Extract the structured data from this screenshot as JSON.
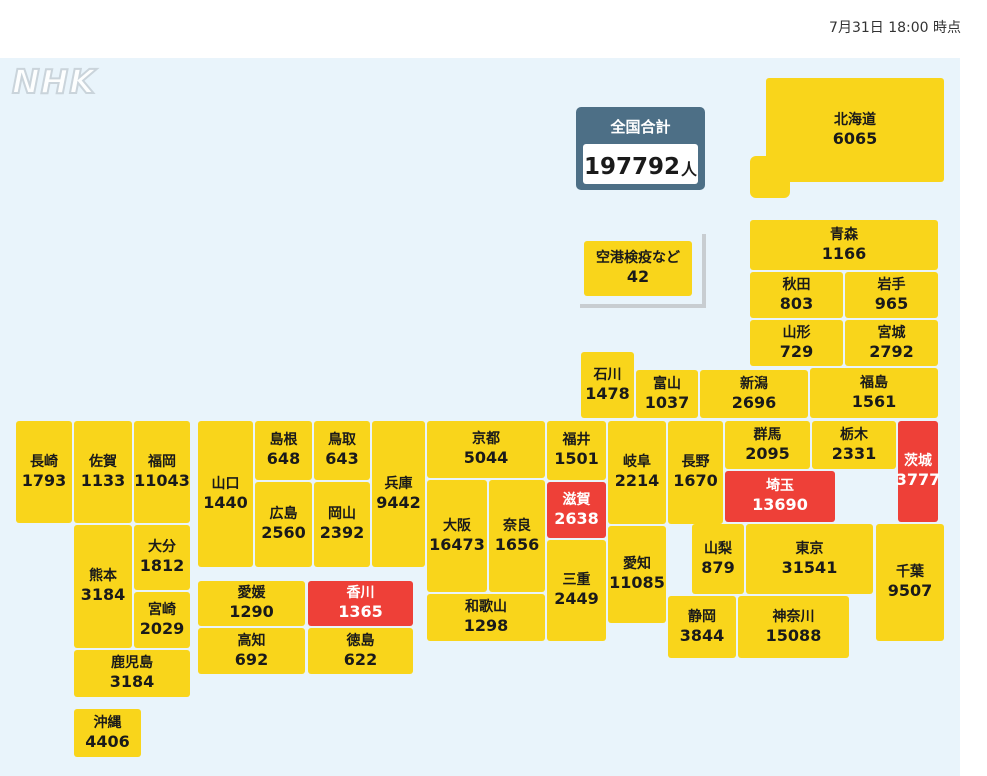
{
  "header": {
    "timestamp": "7月31日 18:00 時点"
  },
  "logo": {
    "text": "NHK"
  },
  "total": {
    "label": "全国合計",
    "value": "197792",
    "unit": "人"
  },
  "colors": {
    "normal": "#f9d51b",
    "highlight": "#ee4038",
    "background": "#e9f4fb",
    "total_box": "#4d6f86"
  },
  "prefectures": [
    {
      "id": "hokkaido",
      "name": "北海道",
      "value": "6065",
      "highlight": false
    },
    {
      "id": "airport",
      "name": "空港検疫など",
      "value": "42",
      "highlight": false
    },
    {
      "id": "aomori",
      "name": "青森",
      "value": "1166",
      "highlight": false
    },
    {
      "id": "akita",
      "name": "秋田",
      "value": "803",
      "highlight": false
    },
    {
      "id": "iwate",
      "name": "岩手",
      "value": "965",
      "highlight": false
    },
    {
      "id": "yamagata",
      "name": "山形",
      "value": "729",
      "highlight": false
    },
    {
      "id": "miyagi",
      "name": "宮城",
      "value": "2792",
      "highlight": false
    },
    {
      "id": "ishikawa",
      "name": "石川",
      "value": "1478",
      "highlight": false
    },
    {
      "id": "toyama",
      "name": "富山",
      "value": "1037",
      "highlight": false
    },
    {
      "id": "niigata",
      "name": "新潟",
      "value": "2696",
      "highlight": false
    },
    {
      "id": "fukushima",
      "name": "福島",
      "value": "1561",
      "highlight": false
    },
    {
      "id": "nagasaki",
      "name": "長崎",
      "value": "1793",
      "highlight": false
    },
    {
      "id": "saga",
      "name": "佐賀",
      "value": "1133",
      "highlight": false
    },
    {
      "id": "fukuoka",
      "name": "福岡",
      "value": "11043",
      "highlight": false
    },
    {
      "id": "yamaguchi",
      "name": "山口",
      "value": "1440",
      "highlight": false
    },
    {
      "id": "shimane",
      "name": "島根",
      "value": "648",
      "highlight": false
    },
    {
      "id": "tottori",
      "name": "鳥取",
      "value": "643",
      "highlight": false
    },
    {
      "id": "hyogo",
      "name": "兵庫",
      "value": "9442",
      "highlight": false
    },
    {
      "id": "kyoto",
      "name": "京都",
      "value": "5044",
      "highlight": false
    },
    {
      "id": "fukui",
      "name": "福井",
      "value": "1501",
      "highlight": false
    },
    {
      "id": "gifu",
      "name": "岐阜",
      "value": "2214",
      "highlight": false
    },
    {
      "id": "nagano",
      "name": "長野",
      "value": "1670",
      "highlight": false
    },
    {
      "id": "gunma",
      "name": "群馬",
      "value": "2095",
      "highlight": false
    },
    {
      "id": "tochigi",
      "name": "栃木",
      "value": "2331",
      "highlight": false
    },
    {
      "id": "ibaraki",
      "name": "茨城",
      "value": "3777",
      "highlight": true
    },
    {
      "id": "saitama",
      "name": "埼玉",
      "value": "13690",
      "highlight": true
    },
    {
      "id": "shiga",
      "name": "滋賀",
      "value": "2638",
      "highlight": true
    },
    {
      "id": "hiroshima",
      "name": "広島",
      "value": "2560",
      "highlight": false
    },
    {
      "id": "okayama",
      "name": "岡山",
      "value": "2392",
      "highlight": false
    },
    {
      "id": "osaka",
      "name": "大阪",
      "value": "16473",
      "highlight": false
    },
    {
      "id": "nara",
      "name": "奈良",
      "value": "1656",
      "highlight": false
    },
    {
      "id": "mie",
      "name": "三重",
      "value": "2449",
      "highlight": false
    },
    {
      "id": "aichi",
      "name": "愛知",
      "value": "11085",
      "highlight": false
    },
    {
      "id": "yamanashi",
      "name": "山梨",
      "value": "879",
      "highlight": false
    },
    {
      "id": "tokyo",
      "name": "東京",
      "value": "31541",
      "highlight": false
    },
    {
      "id": "chiba",
      "name": "千葉",
      "value": "9507",
      "highlight": false
    },
    {
      "id": "oita",
      "name": "大分",
      "value": "1812",
      "highlight": false
    },
    {
      "id": "kumamoto",
      "name": "熊本",
      "value": "3184",
      "highlight": false
    },
    {
      "id": "miyazaki",
      "name": "宮崎",
      "value": "2029",
      "highlight": false
    },
    {
      "id": "ehime",
      "name": "愛媛",
      "value": "1290",
      "highlight": false
    },
    {
      "id": "kagawa",
      "name": "香川",
      "value": "1365",
      "highlight": true
    },
    {
      "id": "wakayama",
      "name": "和歌山",
      "value": "1298",
      "highlight": false
    },
    {
      "id": "shizuoka",
      "name": "静岡",
      "value": "3844",
      "highlight": false
    },
    {
      "id": "kanagawa",
      "name": "神奈川",
      "value": "15088",
      "highlight": false
    },
    {
      "id": "kochi",
      "name": "高知",
      "value": "692",
      "highlight": false
    },
    {
      "id": "tokushima",
      "name": "徳島",
      "value": "622",
      "highlight": false
    },
    {
      "id": "kagoshima",
      "name": "鹿児島",
      "value": "3184",
      "highlight": false
    },
    {
      "id": "okinawa",
      "name": "沖縄",
      "value": "4406",
      "highlight": false
    }
  ]
}
